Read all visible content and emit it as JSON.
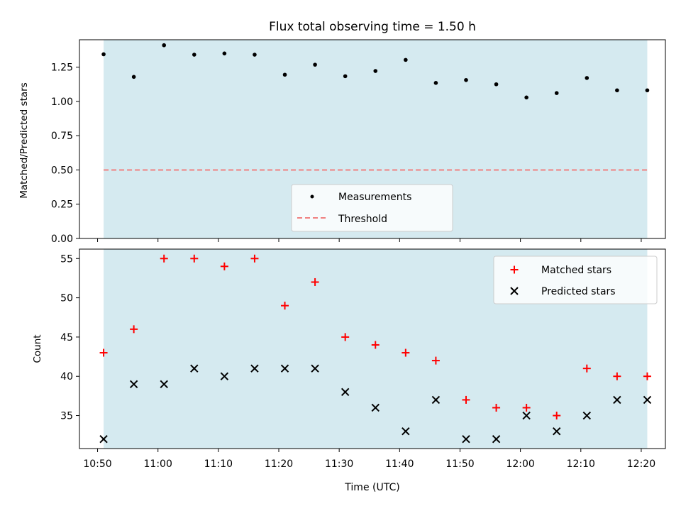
{
  "chart_data": [
    {
      "type": "scatter",
      "title": "Flux total observing time = 1.50 h",
      "xlabel": "",
      "ylabel": "Matched/Predicted stars",
      "ylim": [
        0,
        1.45
      ],
      "yticks": [
        "0.00",
        "0.25",
        "0.50",
        "0.75",
        "1.00",
        "1.25"
      ],
      "ytick_values": [
        0,
        0.25,
        0.5,
        0.75,
        1.0,
        1.25
      ],
      "xlim": [
        "10:47",
        "12:24"
      ],
      "shaded_span": [
        "10:51",
        "12:21"
      ],
      "shade_color": "#d5eaf0",
      "x_share_with_lower_panel": true,
      "x": [
        "10:51",
        "10:56",
        "11:01",
        "11:06",
        "11:11",
        "11:16",
        "11:21",
        "11:26",
        "11:31",
        "11:36",
        "11:41",
        "11:46",
        "11:51",
        "11:56",
        "12:01",
        "12:06",
        "12:11",
        "12:16",
        "12:21"
      ],
      "series": [
        {
          "name": "Measurements",
          "marker": "dot",
          "color": "#000000",
          "values": [
            1.344,
            1.179,
            1.41,
            1.341,
            1.35,
            1.341,
            1.195,
            1.268,
            1.184,
            1.222,
            1.303,
            1.135,
            1.156,
            1.125,
            1.029,
            1.061,
            1.171,
            1.081,
            1.081
          ]
        }
      ],
      "threshold": {
        "name": "Threshold",
        "value": 0.5,
        "color": "#f08080",
        "style": "dashed"
      },
      "legend_position": "lower-center"
    },
    {
      "type": "scatter",
      "title": "",
      "xlabel": "Time (UTC)",
      "ylabel": "Count",
      "ylim": [
        30.8,
        56.2
      ],
      "yticks": [
        "35",
        "40",
        "45",
        "50",
        "55"
      ],
      "ytick_values": [
        35,
        40,
        45,
        50,
        55
      ],
      "xlim": [
        "10:47",
        "12:24"
      ],
      "xticks": [
        "10:50",
        "11:00",
        "11:10",
        "11:20",
        "11:30",
        "11:40",
        "11:50",
        "12:00",
        "12:10",
        "12:20"
      ],
      "shaded_span": [
        "10:51",
        "12:21"
      ],
      "shade_color": "#d5eaf0",
      "x": [
        "10:51",
        "10:56",
        "11:01",
        "11:06",
        "11:11",
        "11:16",
        "11:21",
        "11:26",
        "11:31",
        "11:36",
        "11:41",
        "11:46",
        "11:51",
        "11:56",
        "12:01",
        "12:06",
        "12:11",
        "12:16",
        "12:21"
      ],
      "series": [
        {
          "name": "Matched stars",
          "marker": "plus",
          "color": "#ff0000",
          "values": [
            43,
            46,
            55,
            55,
            54,
            55,
            49,
            52,
            45,
            44,
            43,
            42,
            37,
            36,
            36,
            35,
            41,
            40,
            40
          ]
        },
        {
          "name": "Predicted stars",
          "marker": "x",
          "color": "#000000",
          "values": [
            32,
            39,
            39,
            41,
            40,
            41,
            41,
            41,
            38,
            36,
            33,
            37,
            32,
            32,
            35,
            33,
            35,
            37,
            37
          ]
        }
      ],
      "legend_position": "top-right"
    }
  ]
}
